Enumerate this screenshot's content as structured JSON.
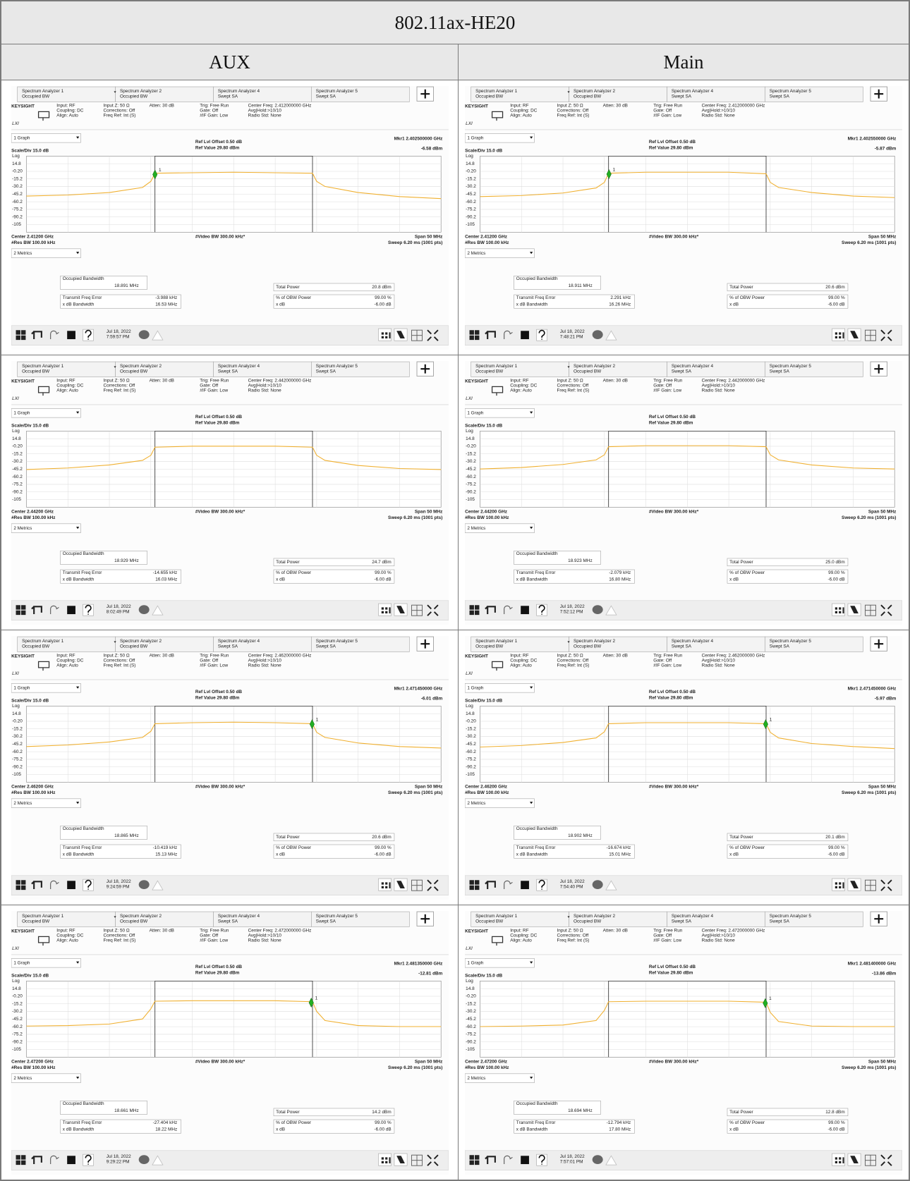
{
  "title": "802.11ax-HE20",
  "columns": [
    "AUX",
    "Main"
  ],
  "analyzer": {
    "tabs": [
      {
        "name": "Spectrum Analyzer 1",
        "mode": "Occupied BW"
      },
      {
        "name": "Spectrum Analyzer 2",
        "mode": "Occupied BW"
      },
      {
        "name": "Spectrum Analyzer 4",
        "mode": "Swept SA"
      },
      {
        "name": "Spectrum Analyzer 5",
        "mode": "Swept SA"
      }
    ],
    "brand": "KEYSIGHT",
    "lxi": "LXI",
    "info": [
      [
        "Input: RF",
        "Coupling: DC",
        "Align: Auto"
      ],
      [
        "Input Z: 50 Ω",
        "Corrections: Off",
        "Freq Ref: Int (S)"
      ],
      [
        "Atten: 30 dB"
      ],
      [
        "Trig: Free Run",
        "Gate: Off",
        "#IF Gain: Low"
      ]
    ],
    "info_avg": [
      "Avg|Hold:>10/10",
      "Radio Std: None"
    ],
    "graph_select": "1 Graph",
    "ref_offset": "Ref Lvl Offset 0.50 dB",
    "ref_value": "Ref Value 29.80 dBm",
    "scale": "Scale/Div 15.0 dB",
    "log": "Log",
    "marker_id": "1",
    "vbw": "#Video BW 300.00 kHz*",
    "span": "Span 50 MHz",
    "rbw": "#Res BW 100.00 kHz",
    "sweep": "Sweep 6.20 ms (1001 pts)",
    "metrics_select": "2 Metrics",
    "obw_label": "Occupied Bandwidth",
    "tfe_label": "Transmit Freq Error",
    "xdbbw_label": "x dB Bandwidth",
    "total_label": "Total Power",
    "pct_label": "% of OBW Power",
    "pct_value": "99.00 %",
    "xdb_label": "x dB",
    "xdb_value": "-6.00 dB",
    "date": "Jul 18, 2022",
    "ylim": [
      -120.2,
      29.8
    ],
    "yticks": [
      14.8,
      {
        "value": -0.2,
        "label": "-0.20"
      },
      -15.2,
      -30.2,
      -45.2,
      -60.2,
      -75.2,
      -90.2,
      -105
    ],
    "xlim": [
      -25,
      25
    ],
    "trace_x": [
      -25,
      -20,
      -15,
      -11,
      -10,
      -9.5,
      -5,
      0,
      5,
      9.5,
      10,
      11,
      15,
      20,
      25
    ]
  },
  "panels": [
    {
      "center_freq": "Center Freq: 2.412000000 GHz",
      "center": "Center 2.41200 GHz",
      "marker": {
        "label": "Mkr1 2.402500000 GHz",
        "value_label": "-6.58 dBm",
        "x": -9.5,
        "y": -6.58
      },
      "obw": "18.891 MHz",
      "freq_error": "-3.988 kHz",
      "xdb_bw": "16.53 MHz",
      "total_power": "20.8 dBm",
      "time": "7:59:57 PM",
      "trace": [
        -49,
        -47,
        -42,
        -32,
        -20,
        -4,
        -3,
        -2,
        -3,
        -4,
        -20,
        -30,
        -42,
        -50,
        -54
      ]
    },
    {
      "center_freq": "Center Freq: 2.412000000 GHz",
      "center": "Center 2.41200 GHz",
      "marker": {
        "label": "Mkr1 2.402550000 GHz",
        "value_label": "-5.87 dBm",
        "x": -9.45,
        "y": -5.87
      },
      "obw": "18.911 MHz",
      "freq_error": "2.291 kHz",
      "xdb_bw": "16.26 MHz",
      "total_power": "20.6 dBm",
      "time": "7:48:21 PM",
      "trace": [
        -50,
        -48,
        -43,
        -33,
        -22,
        -4,
        -2,
        -2,
        -2,
        -5,
        -22,
        -32,
        -42,
        -49,
        -52
      ]
    },
    {
      "center_freq": "Center Freq: 2.442000000 GHz",
      "center": "Center 2.44200 GHz",
      "obw": "18.929 MHz",
      "freq_error": "-14.655 kHz",
      "xdb_bw": "16.03 MHz",
      "total_power": "24.7 dBm",
      "time": "8:02:49 PM",
      "trace": [
        -46,
        -43,
        -37,
        -28,
        -18,
        -2,
        0,
        0,
        0,
        -2,
        -18,
        -28,
        -38,
        -44,
        -46
      ]
    },
    {
      "center_freq": "Center Freq: 2.442000000 GHz",
      "center": "Center 2.44200 GHz",
      "obw": "18.923 MHz",
      "freq_error": "-2.079 kHz",
      "xdb_bw": "16.80 MHz",
      "total_power": "25.0 dBm",
      "time": "7:52:12 PM",
      "trace": [
        -45,
        -42,
        -36,
        -27,
        -17,
        -1,
        1,
        1,
        1,
        -1,
        -17,
        -27,
        -37,
        -43,
        -45
      ]
    },
    {
      "center_freq": "Center Freq: 2.462000000 GHz",
      "center": "Center 2.46200 GHz",
      "marker": {
        "label": "Mkr1 2.471450000 GHz",
        "value_label": "-6.01 dBm",
        "x": 9.45,
        "y": -6.01
      },
      "obw": "18.865 MHz",
      "freq_error": "-10.419 kHz",
      "xdb_bw": "15.13 MHz",
      "total_power": "20.6 dBm",
      "time": "9:24:59 PM",
      "trace": [
        -50,
        -47,
        -41,
        -32,
        -20,
        -5,
        -3,
        -2,
        -3,
        -5,
        -22,
        -32,
        -43,
        -50,
        -53
      ]
    },
    {
      "center_freq": "Center Freq: 2.462000000 GHz",
      "center": "Center 2.46200 GHz",
      "marker": {
        "label": "Mkr1 2.471450000 GHz",
        "value_label": "-5.97 dBm",
        "x": 9.45,
        "y": -5.97
      },
      "obw": "18.902 MHz",
      "freq_error": "-16.674 kHz",
      "xdb_bw": "15.01 MHz",
      "total_power": "20.1 dBm",
      "time": "7:54:40 PM",
      "trace": [
        -51,
        -48,
        -42,
        -33,
        -21,
        -5,
        -3,
        -3,
        -3,
        -5,
        -22,
        -33,
        -44,
        -50,
        -54
      ]
    },
    {
      "center_freq": "Center Freq: 2.472000000 GHz",
      "center": "Center 2.47200 GHz",
      "marker": {
        "label": "Mkr1 2.481350000 GHz",
        "value_label": "-12.81 dBm",
        "x": 9.35,
        "y": -12.81
      },
      "obw": "18.661 MHz",
      "freq_error": "-27.404 kHz",
      "xdb_bw": "18.22 MHz",
      "total_power": "14.2 dBm",
      "time": "9:29:22 PM",
      "trace": [
        -59,
        -58,
        -55,
        -45,
        -25,
        -10,
        -9,
        -9,
        -9,
        -11,
        -30,
        -48,
        -58,
        -60,
        -60
      ]
    },
    {
      "center_freq": "Center Freq: 2.472000000 GHz",
      "center": "Center 2.47200 GHz",
      "marker": {
        "label": "Mkr1 2.481400000 GHz",
        "value_label": "-13.86 dBm",
        "x": 9.4,
        "y": -13.86
      },
      "obw": "18.694 MHz",
      "freq_error": "-12.794 kHz",
      "xdb_bw": "17.80 MHz",
      "total_power": "12.8 dBm",
      "time": "7:57:01 PM",
      "trace": [
        -60,
        -59,
        -57,
        -48,
        -28,
        -11,
        -10,
        -10,
        -10,
        -12,
        -32,
        -50,
        -59,
        -60,
        -60
      ]
    }
  ]
}
